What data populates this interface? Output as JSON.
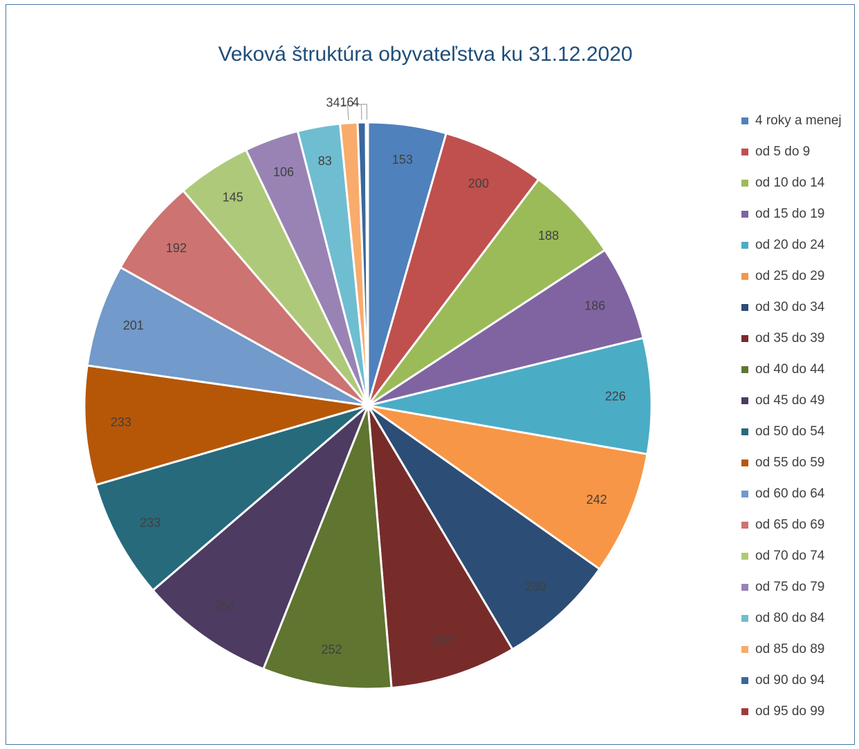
{
  "chart_data": {
    "type": "pie",
    "title": "Veková štruktúra obyvateľstva ku 31.12.2020",
    "legend_position": "right",
    "series": [
      {
        "label": "4 roky a menej",
        "value": 153,
        "color": "#4f81bd"
      },
      {
        "label": "od 5 do 9",
        "value": 200,
        "color": "#c0504d"
      },
      {
        "label": "od 10 do 14",
        "value": 188,
        "color": "#9bbb59"
      },
      {
        "label": "od 15 do 19",
        "value": 186,
        "color": "#8064a2"
      },
      {
        "label": "od 20 do 24",
        "value": 226,
        "color": "#4bacc6"
      },
      {
        "label": "od 25 do 29",
        "value": 242,
        "color": "#f79646"
      },
      {
        "label": "od 30 do 34",
        "value": 230,
        "color": "#2c4d75"
      },
      {
        "label": "od 35 do 39",
        "value": 247,
        "color": "#772c2a"
      },
      {
        "label": "od 40 do 44",
        "value": 252,
        "color": "#5f7530"
      },
      {
        "label": "od 45 do 49",
        "value": 264,
        "color": "#4d3b62"
      },
      {
        "label": "od 50 do 54",
        "value": 233,
        "color": "#276a7c"
      },
      {
        "label": "od 55 do 59",
        "value": 233,
        "color": "#b65708"
      },
      {
        "label": "od 60 do 64",
        "value": 201,
        "color": "#729aca"
      },
      {
        "label": "od 65 do 69",
        "value": 192,
        "color": "#cd7371"
      },
      {
        "label": "od 70 do 74",
        "value": 145,
        "color": "#afc97a"
      },
      {
        "label": "od 75 do 79",
        "value": 106,
        "color": "#9983b5"
      },
      {
        "label": "od 80 do 84",
        "value": 83,
        "color": "#6fbdd1"
      },
      {
        "label": "od 85 do 89",
        "value": 34,
        "color": "#f9ab6b"
      },
      {
        "label": "od 90 do 94",
        "value": 16,
        "color": "#3a679c"
      },
      {
        "label": "od 95 do 99",
        "value": 4,
        "color": "#9f3b38"
      }
    ]
  }
}
